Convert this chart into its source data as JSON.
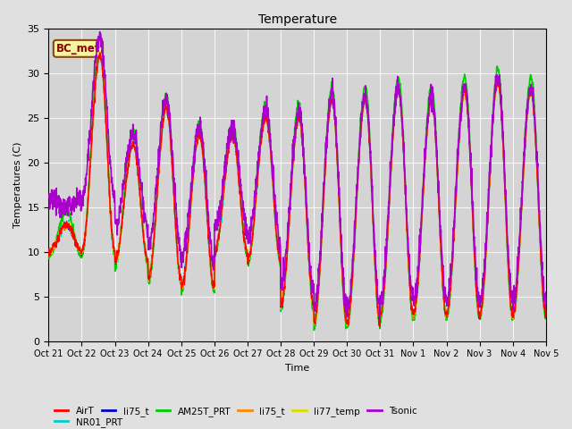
{
  "title": "Temperature",
  "xlabel": "Time",
  "ylabel": "Temperatures (C)",
  "ylim": [
    0,
    35
  ],
  "xlim": [
    0,
    15
  ],
  "figsize": [
    6.4,
    4.8
  ],
  "dpi": 100,
  "background_color": "#e0e0e0",
  "plot_bg_color": "#d4d4d4",
  "annotation_text": "BC_met",
  "annotation_bg": "#f5f5a0",
  "annotation_border": "#8b4513",
  "annotation_text_color": "#8b0000",
  "n_points": 2000,
  "series_colors": {
    "AirT": "#ff0000",
    "li75_b": "#0000cc",
    "AM25T_PRT": "#00cc00",
    "li75_o": "#ff8800",
    "li77_temp": "#dddd00",
    "Tsonic": "#aa00cc",
    "NR01_PRT": "#00cccc"
  },
  "series_lw": {
    "AirT": 1.0,
    "li75_b": 1.0,
    "AM25T_PRT": 1.2,
    "li75_o": 1.0,
    "li77_temp": 1.2,
    "Tsonic": 1.2,
    "NR01_PRT": 1.2
  },
  "peak_maxes": [
    13,
    32,
    22,
    26,
    23,
    23,
    25,
    25,
    27,
    27,
    28,
    27,
    28,
    29,
    28,
    28
  ],
  "trough_mins": [
    10,
    10,
    9,
    7,
    6,
    10,
    9,
    4,
    2,
    2,
    3,
    3,
    3,
    3,
    3,
    4
  ],
  "legend_labels": [
    "AirT",
    "li75_t",
    "AM25T_PRT",
    "li75_t",
    "li77_temp",
    "Tsonic",
    "NR01_PRT"
  ],
  "legend_colors": [
    "#ff0000",
    "#0000cc",
    "#00cc00",
    "#ff8800",
    "#dddd00",
    "#aa00cc",
    "#00cccc"
  ],
  "tick_labels": [
    "Oct 21",
    "Oct 22",
    "Oct 23",
    "Oct 24",
    "Oct 25",
    "Oct 26",
    "Oct 27",
    "Oct 28",
    "Oct 29",
    "Oct 30",
    "Oct 31",
    "Nov 1",
    "Nov 2",
    "Nov 3",
    "Nov 4",
    "Nov 5"
  ]
}
